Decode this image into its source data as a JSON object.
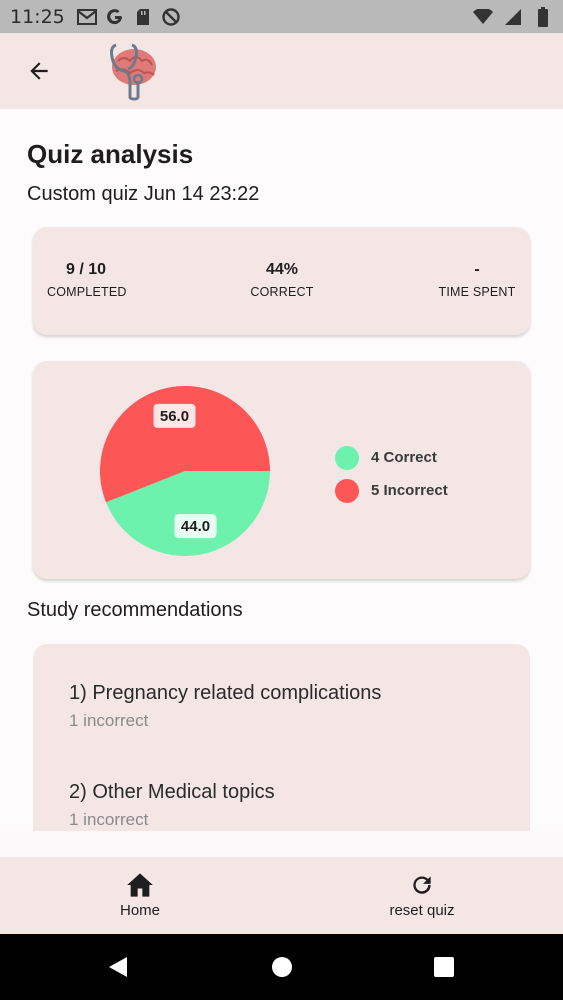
{
  "status_bar": {
    "time": "11:25",
    "left_icons": [
      "gmail-icon",
      "google-icon",
      "sd-card-icon",
      "do-not-disturb-icon"
    ],
    "right_icons": [
      "wifi-icon",
      "signal-icon",
      "battery-icon"
    ]
  },
  "app_bar": {
    "back_icon": "arrow-back-icon",
    "logo": "brain-stethoscope-logo"
  },
  "page": {
    "title": "Quiz analysis",
    "quiz_name": "Custom quiz Jun 14 23:22"
  },
  "stats": {
    "completed_value": "9 / 10",
    "completed_label": "COMPLETED",
    "correct_value": "44%",
    "correct_label": "CORRECT",
    "time_value": "-",
    "time_label": "TIME SPENT"
  },
  "chart_data": {
    "type": "pie",
    "slices": [
      {
        "label": "Correct",
        "value": 44.0,
        "count": 4,
        "color": "#6cf2ac"
      },
      {
        "label": "Incorrect",
        "value": 56.0,
        "count": 5,
        "color": "#fd5656"
      }
    ],
    "data_labels": [
      "44.0",
      "56.0"
    ],
    "legend": [
      "4 Correct",
      "5 Incorrect"
    ],
    "legend_position": "right"
  },
  "recommendations": {
    "title": "Study recommendations",
    "items": [
      {
        "title": "1) Pregnancy related complications",
        "subtitle": "1 incorrect"
      },
      {
        "title": "2) Other Medical topics",
        "subtitle": "1 incorrect"
      }
    ]
  },
  "bottom_nav": {
    "home_label": "Home",
    "home_icon": "home-icon",
    "reset_label": "reset quiz",
    "reset_icon": "refresh-icon"
  },
  "system_nav": {
    "icons": [
      "back-triangle-icon",
      "home-circle-icon",
      "recents-square-icon"
    ]
  },
  "colors": {
    "accent_bg": "#f5e6e6",
    "correct": "#6cf2ac",
    "incorrect": "#fd5656"
  }
}
